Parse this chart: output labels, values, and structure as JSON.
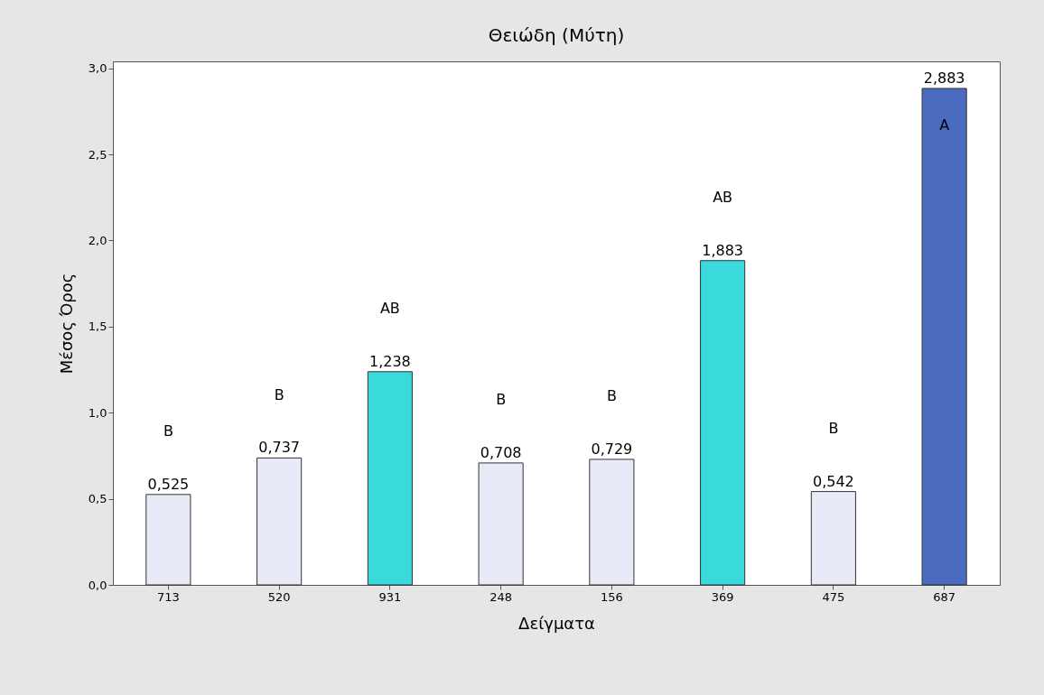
{
  "chart_data": {
    "type": "bar",
    "title": "Θειώδη (Μύτη)",
    "xlabel": "Δείγματα",
    "ylabel": "Μέσος Όρος",
    "categories": [
      "713",
      "520",
      "931",
      "248",
      "156",
      "369",
      "475",
      "687"
    ],
    "values": [
      0.525,
      0.737,
      1.238,
      0.708,
      0.729,
      1.883,
      0.542,
      2.883
    ],
    "colors": [
      "#e8eaf8",
      "#e8eaf8",
      "#3ad9db",
      "#e8eaf8",
      "#e8eaf8",
      "#3ad9db",
      "#e8eaf8",
      "#4a6bbf"
    ],
    "value_labels": [
      "0,525",
      "0,737",
      "1,238",
      "0,708",
      "0,729",
      "1,883",
      "0,542",
      "2,883"
    ],
    "ylim": [
      0,
      3.04
    ],
    "yticks": [
      {
        "value": 0,
        "label": "0,0"
      },
      {
        "value": 0.5,
        "label": "0,5"
      },
      {
        "value": 1,
        "label": "1,0"
      },
      {
        "value": 1.5,
        "label": "1,5"
      },
      {
        "value": 2,
        "label": "2,0"
      },
      {
        "value": 2.5,
        "label": "2,5"
      },
      {
        "value": 3,
        "label": "3,0"
      }
    ],
    "annotations": [
      "B",
      "B",
      "AB",
      "B",
      "B",
      "AB",
      "B",
      "A"
    ],
    "grid": false
  }
}
